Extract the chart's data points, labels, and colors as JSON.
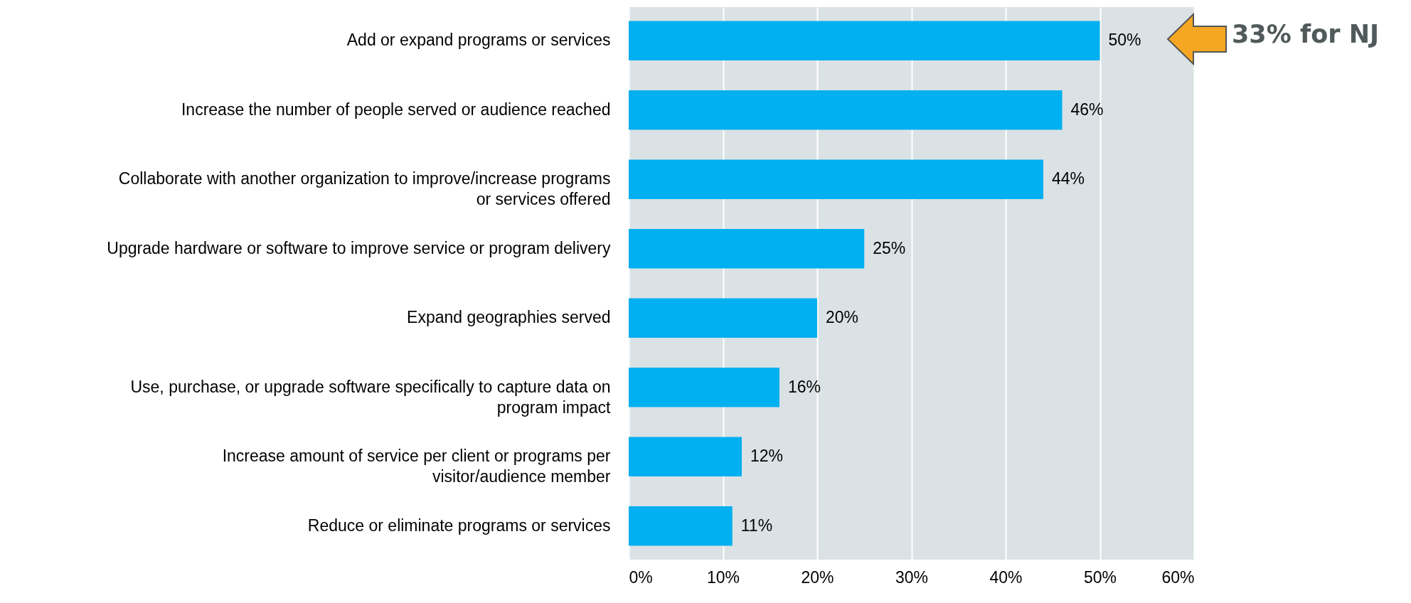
{
  "chart_data": {
    "type": "bar",
    "orientation": "horizontal",
    "categories": [
      "Add or expand programs or services",
      "Increase the number of people served or audience reached",
      "Collaborate with another organization to improve/increase programs or services offered",
      "Upgrade hardware or software to improve service or program delivery",
      "Expand geographies served",
      "Use, purchase, or upgrade software specifically to capture data on program impact",
      "Increase amount of service per client or programs per visitor/audience member",
      "Reduce or eliminate programs or services"
    ],
    "values": [
      50,
      46,
      44,
      25,
      20,
      16,
      12,
      11
    ],
    "value_labels": [
      "50%",
      "46%",
      "44%",
      "25%",
      "20%",
      "16%",
      "12%",
      "11%"
    ],
    "color": "#00b0f0",
    "xlim": [
      0,
      60
    ],
    "xticks": [
      {
        "value": 0,
        "label": "0%"
      },
      {
        "value": 10,
        "label": "10%"
      },
      {
        "value": 20,
        "label": "20%"
      },
      {
        "value": 30,
        "label": "30%"
      },
      {
        "value": 40,
        "label": "40%"
      },
      {
        "value": 50,
        "label": "50%"
      },
      {
        "value": 60,
        "label": "60%"
      }
    ],
    "grid": "x",
    "annotations": [
      "33% for NJ"
    ]
  }
}
